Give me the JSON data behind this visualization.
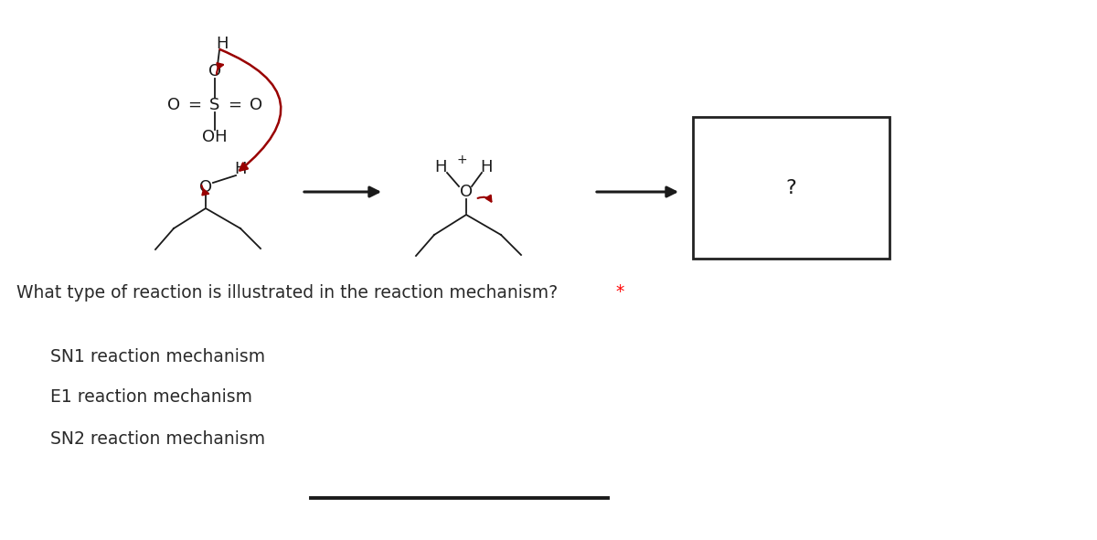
{
  "bg_color": "#ffffff",
  "question_text": "What type of reaction is illustrated in the reaction mechanism?",
  "question_asterisk": "*",
  "options": [
    "SN1 reaction mechanism",
    "E1 reaction mechanism",
    "SN2 reaction mechanism"
  ],
  "dark_red": "#990000",
  "black": "#1a1a1a",
  "text_color": "#2a2a2a",
  "font_size_question": 13.5,
  "font_size_options": 13.5,
  "font_size_chem": 13,
  "font_size_qmark": 16
}
